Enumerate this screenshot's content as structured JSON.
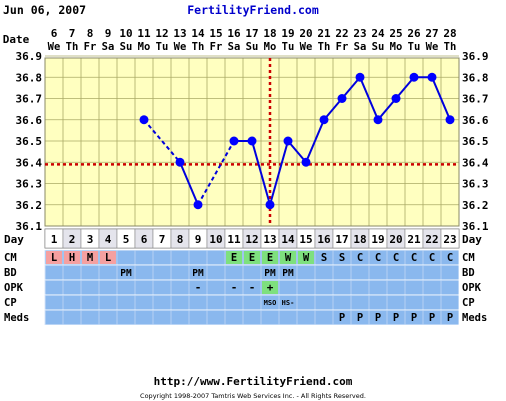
{
  "header": {
    "date_text": "Jun 06, 2007",
    "brand": "FertilityFriend.com"
  },
  "footer": {
    "url": "http://www.FertilityFriend.com",
    "copyright": "Copyright 1998-2007 Tamtris Web Services Inc. - All Rights Reserved."
  },
  "row_labels": {
    "date": "Date",
    "day": "Day",
    "cm": "CM",
    "bd": "BD",
    "opk": "OPK",
    "cp": "CP",
    "meds": "Meds"
  },
  "chart_data": {
    "type": "line",
    "dates": [
      "6",
      "7",
      "8",
      "9",
      "10",
      "11",
      "12",
      "13",
      "14",
      "15",
      "16",
      "17",
      "18",
      "19",
      "20",
      "21",
      "22",
      "23",
      "24",
      "25",
      "26",
      "27",
      "28"
    ],
    "weekdays": [
      "We",
      "Th",
      "Fr",
      "Sa",
      "Su",
      "Mo",
      "Tu",
      "We",
      "Th",
      "Fr",
      "Sa",
      "Su",
      "Mo",
      "Tu",
      "We",
      "Th",
      "Fr",
      "Sa",
      "Su",
      "Mo",
      "Tu",
      "We",
      "Th"
    ],
    "cycle_days": [
      "1",
      "2",
      "3",
      "4",
      "5",
      "6",
      "7",
      "8",
      "9",
      "10",
      "11",
      "12",
      "13",
      "14",
      "15",
      "16",
      "17",
      "18",
      "19",
      "20",
      "21",
      "22",
      "23"
    ],
    "y_ticks": [
      "36.1",
      "36.2",
      "36.3",
      "36.4",
      "36.5",
      "36.6",
      "36.7",
      "36.8",
      "36.9"
    ],
    "ylim": [
      36.1,
      36.9
    ],
    "temperatures": [
      null,
      null,
      null,
      null,
      null,
      36.6,
      null,
      36.4,
      36.2,
      null,
      36.5,
      36.5,
      36.2,
      36.5,
      36.4,
      36.6,
      36.7,
      36.8,
      36.6,
      36.7,
      36.8,
      36.8,
      36.6
    ],
    "coverline": 36.39,
    "ovulation_day_index": 12,
    "dashed_segments": [
      [
        5,
        7
      ],
      [
        8,
        10
      ],
      [
        12,
        14
      ]
    ],
    "line_color": "#0000dd",
    "marker_color": "#0000ff",
    "coverline_color": "#cc0000",
    "plot_background": "#ffffc0",
    "grid_color": "#aaaa66",
    "cm": [
      "L",
      "H",
      "M",
      "L",
      "",
      "",
      "",
      "",
      "",
      "",
      "E",
      "E",
      "E",
      "W",
      "W",
      "S",
      "S",
      "C",
      "C",
      "C",
      "C",
      "C",
      "C"
    ],
    "cm_colors": {
      "L": "#f5a0a0",
      "H": "#f5a0a0",
      "M": "#f5a0a0",
      "E": "#7ee07e",
      "W": "#7ee07e"
    },
    "bd": [
      "",
      "",
      "",
      "",
      "PM",
      "",
      "",
      "",
      "PM",
      "",
      "",
      "",
      "PM",
      "PM",
      "",
      "",
      "",
      "",
      "",
      "",
      "",
      "",
      ""
    ],
    "opk": [
      "",
      "",
      "",
      "",
      "",
      "",
      "",
      "",
      "-",
      "",
      "-",
      "-",
      "+",
      "",
      "",
      "",
      "",
      "",
      "",
      "",
      "",
      "",
      ""
    ],
    "opk_colors": {
      "+": "#7ee07e"
    },
    "cp": [
      "",
      "",
      "",
      "",
      "",
      "",
      "",
      "",
      "",
      "",
      "",
      "",
      "MSO",
      "HS-",
      "",
      "",
      "",
      "",
      "",
      "",
      "",
      "",
      ""
    ],
    "meds": [
      "",
      "",
      "",
      "",
      "",
      "",
      "",
      "",
      "",
      "",
      "",
      "",
      "",
      "",
      "",
      "",
      "P",
      "P",
      "P",
      "P",
      "P",
      "P",
      "P"
    ],
    "row_background": "#8ab8ee"
  }
}
